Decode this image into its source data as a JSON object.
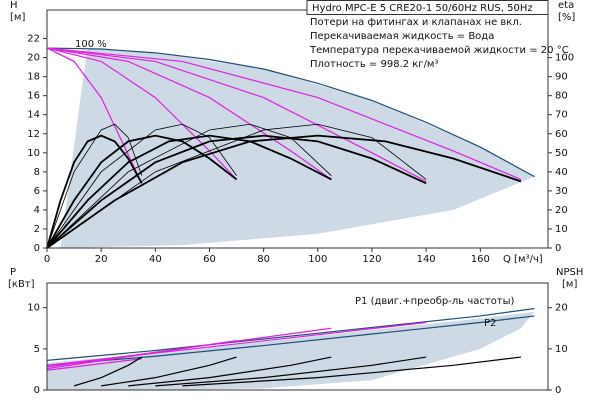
{
  "chart_data": [
    {
      "type": "line",
      "title": "Hydro MPC-E 5 CRE20-1 50/60Hz RUS, 50Hz",
      "notes": [
        "Потери на фитингах и клапанах не вкл.",
        "Перекачиваемая жидкость = Вода",
        "Температура перекачиваемой жидкости = 20 °C",
        "Плотность = 998.2 кг/м³"
      ],
      "annotations": [
        "100 %"
      ],
      "y_label": [
        "H",
        "[м]"
      ],
      "y2_label": [
        "eta",
        "[%]"
      ],
      "x_label": "Q [м³/ч]",
      "xlim": [
        0,
        185
      ],
      "ylim": [
        0,
        25
      ],
      "y2lim": [
        0,
        125
      ],
      "xticks": [
        0,
        20,
        40,
        60,
        80,
        100,
        120,
        140,
        160
      ],
      "yticks": [
        0,
        2,
        4,
        6,
        8,
        10,
        12,
        14,
        16,
        18,
        20,
        22
      ],
      "y2ticks": [
        0,
        10,
        20,
        30,
        40,
        50,
        60,
        70,
        80,
        90,
        100
      ],
      "areas": [
        {
          "color": "#cdd9e5",
          "x": [
            5,
            12,
            15,
            40,
            80,
            120,
            160,
            180,
            150,
            100,
            50
          ],
          "values": [
            0,
            15,
            21,
            20.5,
            18.8,
            15.5,
            10.6,
            7.5,
            4,
            1.5,
            0.3
          ]
        }
      ],
      "series": [
        {
          "color": "#1f4e79",
          "width": 1.2,
          "x": [
            0,
            20,
            40,
            60,
            80,
            100,
            120,
            140,
            160,
            180
          ],
          "values": [
            21,
            20.9,
            20.5,
            19.8,
            18.8,
            17.3,
            15.5,
            13.2,
            10.6,
            7.5
          ]
        },
        {
          "color": "#e020e0",
          "width": 1.2,
          "x": [
            0,
            10,
            20,
            30,
            35
          ],
          "values": [
            21,
            19.6,
            15.8,
            9.8,
            6.8
          ]
        },
        {
          "color": "#e020e0",
          "width": 1.2,
          "x": [
            0,
            20,
            40,
            60,
            70
          ],
          "values": [
            21,
            19.6,
            15.8,
            10.2,
            7.2
          ]
        },
        {
          "color": "#e020e0",
          "width": 1.2,
          "x": [
            0,
            30,
            60,
            90,
            105
          ],
          "values": [
            21,
            19.6,
            15.8,
            10.2,
            7.2
          ]
        },
        {
          "color": "#e020e0",
          "width": 1.2,
          "x": [
            0,
            40,
            80,
            120,
            140
          ],
          "values": [
            21,
            19.6,
            15.8,
            10.0,
            7.0
          ]
        },
        {
          "color": "#e020e0",
          "width": 1.2,
          "x": [
            0,
            50,
            100,
            150,
            175
          ],
          "values": [
            21,
            19.6,
            15.8,
            10.2,
            7.2
          ]
        },
        {
          "color": "#000000",
          "width": 1.8,
          "axis": "y2",
          "x": [
            0,
            5,
            10,
            15,
            20,
            25,
            30,
            35
          ],
          "values": [
            0,
            25,
            45,
            56,
            59,
            56,
            47,
            34
          ]
        },
        {
          "color": "#000000",
          "width": 1.8,
          "axis": "y2",
          "x": [
            0,
            10,
            20,
            30,
            40,
            50,
            60,
            70
          ],
          "values": [
            0,
            25,
            45,
            56,
            59,
            56,
            47,
            36
          ]
        },
        {
          "color": "#000000",
          "width": 1.8,
          "axis": "y2",
          "x": [
            0,
            15,
            30,
            45,
            60,
            75,
            90,
            105
          ],
          "values": [
            0,
            25,
            45,
            56,
            59,
            56,
            47,
            36
          ]
        },
        {
          "color": "#000000",
          "width": 1.8,
          "axis": "y2",
          "x": [
            0,
            20,
            40,
            60,
            80,
            100,
            120,
            140
          ],
          "values": [
            0,
            25,
            45,
            56,
            59,
            56,
            47,
            34
          ]
        },
        {
          "color": "#000000",
          "width": 1.8,
          "axis": "y2",
          "x": [
            0,
            25,
            50,
            75,
            100,
            125,
            150,
            175
          ],
          "values": [
            0,
            25,
            45,
            56,
            59,
            56,
            47,
            35
          ]
        },
        {
          "color": "#000000",
          "width": 0.8,
          "axis": "y2",
          "x": [
            0,
            10,
            20,
            25,
            30,
            35
          ],
          "values": [
            0,
            40,
            62,
            65,
            58,
            38
          ]
        },
        {
          "color": "#000000",
          "width": 0.8,
          "axis": "y2",
          "x": [
            0,
            20,
            40,
            50,
            60,
            70
          ],
          "values": [
            0,
            40,
            62,
            65,
            58,
            38
          ]
        },
        {
          "color": "#000000",
          "width": 0.8,
          "axis": "y2",
          "x": [
            0,
            30,
            60,
            75,
            90,
            105
          ],
          "values": [
            0,
            40,
            62,
            65,
            58,
            38
          ]
        },
        {
          "color": "#000000",
          "width": 0.8,
          "axis": "y2",
          "x": [
            0,
            40,
            80,
            100,
            120,
            140
          ],
          "values": [
            0,
            40,
            62,
            65,
            58,
            36
          ]
        }
      ]
    },
    {
      "type": "line",
      "annotations": [
        "P1 (двиг.+преобр-ль частоты)",
        "P2"
      ],
      "y_label": [
        "P",
        "[кВт]"
      ],
      "y2_label": [
        "NPSH",
        "[м]"
      ],
      "xlim": [
        0,
        185
      ],
      "ylim": [
        0,
        13
      ],
      "y2lim": [
        0,
        26
      ],
      "yticks": [
        0,
        5,
        10
      ],
      "y2ticks": [
        0,
        10,
        20
      ],
      "areas": [
        {
          "color": "#cdd9e5",
          "x": [
            0,
            40,
            80,
            120,
            160,
            180,
            175,
            160,
            120,
            80,
            40,
            0
          ],
          "values": [
            3.3,
            4.5,
            5.9,
            7.3,
            8.7,
            9.5,
            7.5,
            5.0,
            1.2,
            0.2,
            0,
            0
          ]
        }
      ],
      "series": [
        {
          "color": "#1f4e79",
          "width": 1.2,
          "x": [
            0,
            40,
            80,
            120,
            160,
            180
          ],
          "values": [
            3.6,
            4.8,
            6.2,
            7.6,
            9.0,
            9.9
          ]
        },
        {
          "color": "#1f4e79",
          "width": 1.2,
          "x": [
            0,
            40,
            80,
            120,
            160,
            180
          ],
          "values": [
            3.0,
            4.1,
            5.4,
            6.8,
            8.2,
            9.0
          ]
        },
        {
          "color": "#e020e0",
          "width": 1.2,
          "x": [
            0,
            35
          ],
          "values": [
            2.4,
            3.8
          ]
        },
        {
          "color": "#e020e0",
          "width": 1.2,
          "x": [
            0,
            70
          ],
          "values": [
            2.6,
            6.0
          ]
        },
        {
          "color": "#e020e0",
          "width": 1.2,
          "x": [
            0,
            105
          ],
          "values": [
            2.8,
            7.5
          ]
        },
        {
          "color": "#e020e0",
          "width": 1.2,
          "x": [
            0,
            140
          ],
          "values": [
            3.0,
            8.2
          ]
        },
        {
          "color": "#000000",
          "width": 1.2,
          "axis": "y2",
          "x": [
            10,
            20,
            30,
            35
          ],
          "values": [
            1,
            3,
            6,
            8
          ]
        },
        {
          "color": "#000000",
          "width": 1.2,
          "axis": "y2",
          "x": [
            20,
            40,
            60,
            70
          ],
          "values": [
            1,
            3,
            6,
            8
          ]
        },
        {
          "color": "#000000",
          "width": 1.2,
          "axis": "y2",
          "x": [
            30,
            60,
            90,
            105
          ],
          "values": [
            1,
            3,
            6,
            8
          ]
        },
        {
          "color": "#000000",
          "width": 1.2,
          "axis": "y2",
          "x": [
            40,
            80,
            120,
            140
          ],
          "values": [
            1,
            3,
            6,
            8
          ]
        },
        {
          "color": "#000000",
          "width": 1.2,
          "axis": "y2",
          "x": [
            50,
            100,
            150,
            175
          ],
          "values": [
            1,
            3,
            6,
            8
          ]
        }
      ]
    }
  ]
}
